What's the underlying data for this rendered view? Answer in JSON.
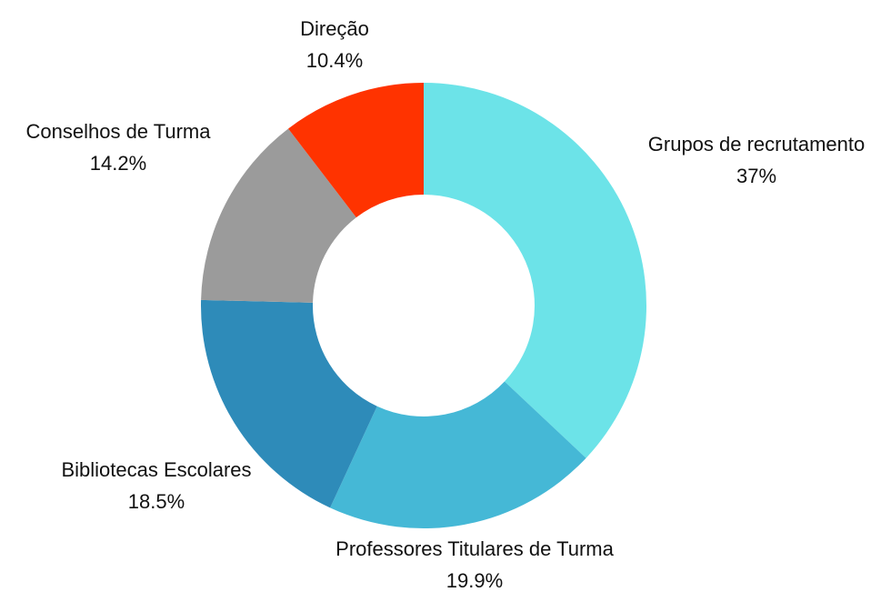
{
  "chart_data": {
    "type": "donut",
    "categories": [
      "Grupos de recrutamento",
      "Professores Titulares de Turma",
      "Bibliotecas Escolares",
      "Conselhos de Turma",
      "Direção"
    ],
    "values": [
      37,
      19.9,
      18.5,
      14.2,
      10.4
    ],
    "value_labels": [
      "37%",
      "19.9%",
      "18.5%",
      "14.2%",
      "10.4%"
    ],
    "colors": [
      "#6ce3e8",
      "#45b8d6",
      "#2e8bb9",
      "#9b9b9b",
      "#ff3300"
    ]
  }
}
